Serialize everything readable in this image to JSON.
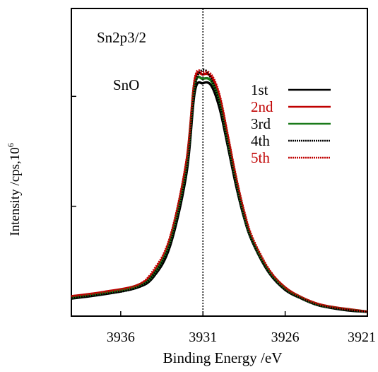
{
  "chart_data": {
    "type": "line",
    "xlabel": "Binding  Energy /eV",
    "ylabel_main": "Intensity /cps,10",
    "ylabel_sup": "6",
    "xlim": [
      3939,
      3921
    ],
    "x_reversed": true,
    "x_ticks": [
      3936,
      3931,
      3926,
      3921
    ],
    "x_tick_labels": [
      "3936",
      "3931",
      "3926",
      "3921"
    ],
    "ylim": [
      0,
      1.4
    ],
    "y_ticks": [
      0,
      0.5,
      1.0
    ],
    "y_tick_labels": [
      "",
      "",
      ""
    ],
    "grid": false,
    "vline_x": 3931,
    "annotations": [
      "Sn2p3/2",
      "SnO"
    ],
    "legend_position": "top-right",
    "series": [
      {
        "name": "1st",
        "color": "#000000",
        "dash": "solid",
        "x": [
          3939,
          3937,
          3935,
          3934,
          3933,
          3932,
          3931.5,
          3931,
          3930.5,
          3930,
          3929.5,
          3929,
          3928.5,
          3928,
          3927,
          3926,
          3925,
          3924,
          3923,
          3922,
          3921
        ],
        "y": [
          0.08,
          0.1,
          0.13,
          0.18,
          0.32,
          0.65,
          1.02,
          1.06,
          1.05,
          0.95,
          0.78,
          0.6,
          0.45,
          0.34,
          0.2,
          0.12,
          0.08,
          0.05,
          0.035,
          0.025,
          0.02
        ]
      },
      {
        "name": "2nd",
        "color": "#c00000",
        "dash": "solid",
        "x": [
          3939,
          3937,
          3935,
          3934,
          3933,
          3932,
          3931.5,
          3931,
          3930.5,
          3930,
          3929.5,
          3929,
          3928.5,
          3928,
          3927,
          3926,
          3925,
          3924,
          3923,
          3922,
          3921
        ],
        "y": [
          0.09,
          0.11,
          0.14,
          0.2,
          0.35,
          0.7,
          1.07,
          1.1,
          1.09,
          1.0,
          0.82,
          0.63,
          0.47,
          0.35,
          0.21,
          0.13,
          0.085,
          0.055,
          0.04,
          0.03,
          0.02
        ]
      },
      {
        "name": "3rd",
        "color": "#1a7a1a",
        "dash": "solid",
        "x": [
          3939,
          3937,
          3935,
          3934,
          3933,
          3932,
          3931.5,
          3931,
          3930.5,
          3930,
          3929.5,
          3929,
          3928.5,
          3928,
          3927,
          3926,
          3925,
          3924,
          3923,
          3922,
          3921
        ],
        "y": [
          0.085,
          0.105,
          0.135,
          0.19,
          0.34,
          0.68,
          1.05,
          1.08,
          1.07,
          0.98,
          0.8,
          0.62,
          0.46,
          0.345,
          0.205,
          0.125,
          0.082,
          0.052,
          0.038,
          0.028,
          0.02
        ]
      },
      {
        "name": "4th",
        "color": "#000000",
        "dash": "dotted",
        "x": [
          3939,
          3937,
          3935,
          3934,
          3933,
          3932,
          3931.5,
          3931,
          3930.5,
          3930,
          3929.5,
          3929,
          3928.5,
          3928,
          3927,
          3926,
          3925,
          3924,
          3923,
          3922,
          3921
        ],
        "y": [
          0.085,
          0.1,
          0.13,
          0.19,
          0.33,
          0.67,
          1.04,
          1.12,
          1.08,
          0.97,
          0.79,
          0.61,
          0.455,
          0.34,
          0.2,
          0.12,
          0.08,
          0.05,
          0.036,
          0.026,
          0.02
        ]
      },
      {
        "name": "5th",
        "color": "#c00000",
        "dash": "dotted",
        "x": [
          3939,
          3937,
          3935,
          3934,
          3933,
          3932,
          3931.5,
          3931,
          3930.5,
          3930,
          3929.5,
          3929,
          3928.5,
          3928,
          3927,
          3926,
          3925,
          3924,
          3923,
          3922,
          3921
        ],
        "y": [
          0.09,
          0.11,
          0.14,
          0.21,
          0.36,
          0.71,
          1.08,
          1.11,
          1.1,
          1.01,
          0.83,
          0.64,
          0.48,
          0.36,
          0.215,
          0.13,
          0.086,
          0.056,
          0.04,
          0.03,
          0.021
        ]
      }
    ]
  }
}
